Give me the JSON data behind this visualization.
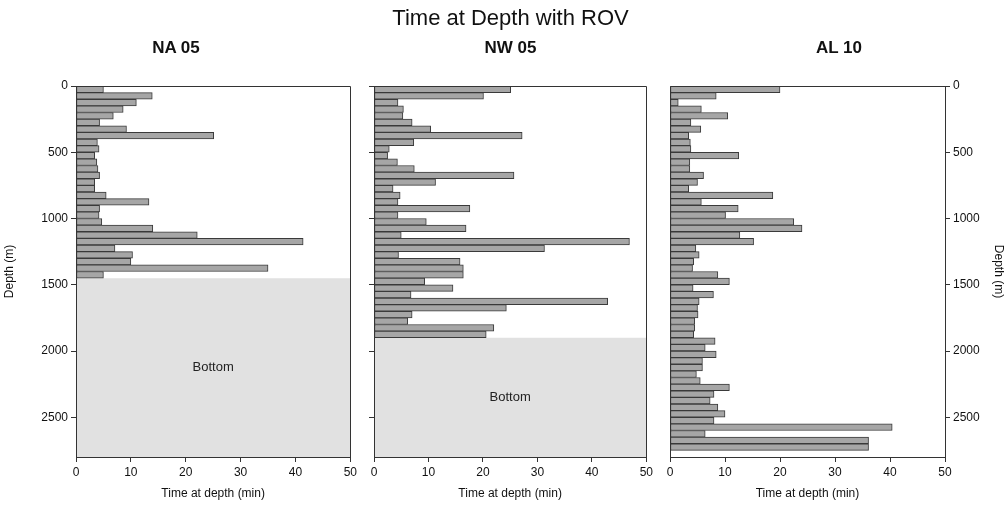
{
  "chart_data": [
    {
      "type": "histogram",
      "orientation": "horizontal",
      "title": "NA 05",
      "xlabel": "Time at depth (min)",
      "ylabel": "Depth (m)",
      "color": "#a6a6a6",
      "bins": [
        0,
        50,
        100,
        150,
        200,
        250,
        300,
        350,
        400,
        450,
        500,
        550,
        600,
        650,
        700,
        750,
        800,
        850,
        900,
        950,
        1000,
        1050,
        1100,
        1150,
        1200,
        1250,
        1300,
        1350,
        1400,
        1450
      ],
      "values": [
        5,
        13.9,
        11,
        8.6,
        6.8,
        4.3,
        9.2,
        25.1,
        3.9,
        4.2,
        3.4,
        3.8,
        4,
        4.3,
        3.4,
        3.4,
        5.5,
        13.3,
        4.3,
        4.2,
        4.7,
        14,
        22.1,
        41.4,
        7.1,
        10.3,
        10,
        35,
        5
      ],
      "xlim": [
        0,
        50
      ],
      "xticks": [
        0,
        10,
        20,
        30,
        40,
        50
      ],
      "ylim": [
        2800,
        0
      ],
      "yticks": [
        0,
        500,
        1000,
        1500,
        2000,
        2500
      ],
      "bands": [
        {
          "axis": "y",
          "from": 1450,
          "to": 2800,
          "label": "Bottom",
          "color": "#e1e1e1"
        }
      ]
    },
    {
      "type": "histogram",
      "orientation": "horizontal",
      "title": "Time at Depth with ROV",
      "subtitle": "NW 05",
      "xlabel": "Time at depth (min)",
      "color": "#a6a6a6",
      "bins": [
        0,
        50,
        100,
        150,
        200,
        250,
        300,
        350,
        400,
        450,
        500,
        550,
        600,
        650,
        700,
        750,
        800,
        850,
        900,
        950,
        1000,
        1050,
        1100,
        1150,
        1200,
        1250,
        1300,
        1350,
        1400,
        1450,
        1500,
        1550,
        1600,
        1650,
        1700,
        1750,
        1800,
        1850,
        1900
      ],
      "values": [
        25.1,
        20.1,
        4.4,
        5.4,
        5.3,
        7,
        10.4,
        27.2,
        7.3,
        2.8,
        2.5,
        4.3,
        7.4,
        25.7,
        11.3,
        3.5,
        4.8,
        4.4,
        17.6,
        4.4,
        9.6,
        16.9,
        5,
        46.9,
        31.3,
        4.5,
        15.8,
        16.4,
        16.4,
        9.3,
        14.5,
        6.8,
        42.9,
        24.3,
        7,
        6.2,
        22,
        20.6
      ],
      "xlim": [
        0,
        50
      ],
      "xticks": [
        0,
        10,
        20,
        30,
        40,
        50
      ],
      "ylim": [
        2800,
        0
      ],
      "yticks": [
        0,
        500,
        1000,
        1500,
        2000,
        2500
      ],
      "tick_labels": "x",
      "bands": [
        {
          "axis": "y",
          "from": 1900,
          "to": 2800,
          "label": "Bottom",
          "color": "#e1e1e1"
        }
      ]
    },
    {
      "type": "histogram",
      "orientation": "horizontal",
      "title": "AL 10",
      "xlabel": "Time at depth (min)",
      "ylabel": "Depth (m)",
      "color": "#a6a6a6",
      "bins": [
        0,
        50,
        100,
        150,
        200,
        250,
        300,
        350,
        400,
        450,
        500,
        550,
        600,
        650,
        700,
        750,
        800,
        850,
        900,
        950,
        1000,
        1050,
        1100,
        1150,
        1200,
        1250,
        1300,
        1350,
        1400,
        1450,
        1500,
        1550,
        1600,
        1650,
        1700,
        1750,
        1800,
        1850,
        1900,
        1950,
        2000,
        2050,
        2100,
        2150,
        2200,
        2250,
        2300,
        2350,
        2400,
        2450,
        2500,
        2550,
        2600,
        2650,
        2700,
        2750
      ],
      "values": [
        20,
        8.4,
        1.5,
        5.7,
        10.5,
        3.8,
        5.6,
        3.4,
        3.7,
        3.8,
        12.5,
        3.6,
        3.6,
        6.1,
        5,
        3.4,
        18.7,
        5.7,
        12.4,
        10.1,
        22.5,
        24,
        12.7,
        15.2,
        4.7,
        5.3,
        4.3,
        4.1,
        8.7,
        10.8,
        4.2,
        7.9,
        5.3,
        5,
        5.1,
        4.5,
        4.5,
        4.3,
        8.2,
        6.4,
        8.4,
        5.9,
        5.9,
        4.8,
        5.5,
        10.8,
        8,
        7.3,
        8.7,
        10,
        8,
        40.4,
        6.4,
        36.1,
        36.1
      ],
      "xlim": [
        0,
        50
      ],
      "xticks": [
        0,
        10,
        20,
        30,
        40,
        50
      ],
      "ylim": [
        2800,
        0
      ],
      "yticks": [
        0,
        500,
        1000,
        1500,
        2000,
        2500
      ]
    }
  ]
}
